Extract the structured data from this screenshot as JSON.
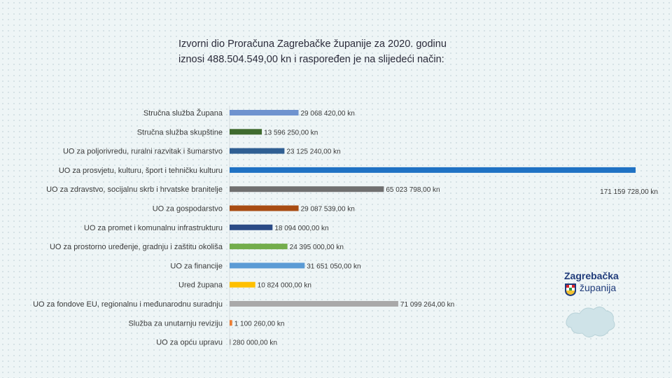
{
  "title": {
    "line1": "Izvorni dio Proračuna Zagrebačke županije za 2020. godinu",
    "line2": "iznosi 488.504.549,00 kn i raspoređen je na slijedeći način:"
  },
  "logo": {
    "line1": "Zagrebačka",
    "line2": "županija"
  },
  "chart_data": {
    "type": "bar",
    "orientation": "horizontal",
    "categories": [
      "Stručna služba Župana",
      "Stručna služba skupštine",
      "UO za poljorivredu, ruralni razvitak i šumarstvo",
      "UO za prosvjetu, kulturu, šport i tehničku kulturu",
      "UO za zdravstvo, socijalnu skrb i hrvatske branitelje",
      "UO za gospodarstvo",
      "UO za promet i komunalnu infrastrukturu",
      "UO za prostorno uređenje, gradnju i zaštitu okoliša",
      "UO za financije",
      "Ured župana",
      "UO za fondove EU, regionalnu i međunarodnu suradnju",
      "Služba za unutarnju reviziju",
      "UO za opću upravu"
    ],
    "values": [
      29068420,
      13596250,
      23125240,
      171159728,
      65023798,
      29087539,
      18094000,
      24395000,
      31651050,
      10824000,
      71099264,
      1100260,
      280000
    ],
    "value_labels": [
      "29 068 420,00 kn",
      "13 596 250,00 kn",
      "23 125 240,00 kn",
      "171 159 728,00 kn",
      "65 023 798,00 kn",
      "29 087 539,00 kn",
      "18 094 000,00 kn",
      "24 395 000,00 kn",
      "31 651 050,00 kn",
      "10 824 000,00 kn",
      "71 099 264,00 kn",
      "1 100 260,00 kn",
      "280 000,00 kn"
    ],
    "colors": [
      "#6f93cf",
      "#3f6b2e",
      "#2f5f93",
      "#1f72c4",
      "#707070",
      "#a84c13",
      "#2b4b86",
      "#73ad4c",
      "#5b9bd5",
      "#ffc000",
      "#a9a9a9",
      "#ed7d31",
      "#9e9e9e"
    ],
    "xlim": [
      0,
      171159728
    ],
    "grid": false,
    "legend": "none"
  }
}
